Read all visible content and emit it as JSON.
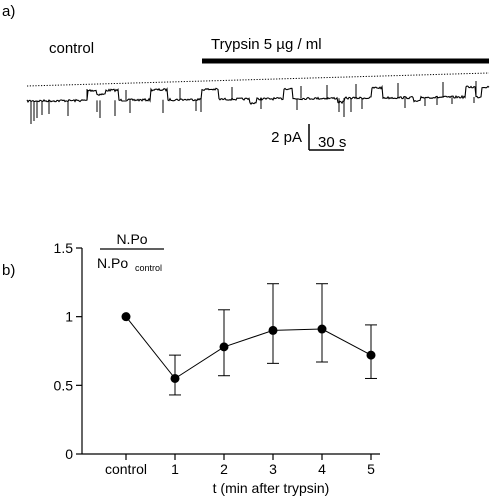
{
  "panel_a": {
    "label": "a)",
    "control_label": "control",
    "treatment_label": "Trypsin 5 µg / ml",
    "scale_current": "2 pA",
    "scale_time": "30 s"
  },
  "panel_b": {
    "label": "b)"
  },
  "chart_data": {
    "type": "line",
    "title": "",
    "ylabel_numerator": "N.Po",
    "ylabel_denominator_main": "N.Po",
    "ylabel_denominator_sub": "control",
    "xlabel": "t (min after trypsin)",
    "categories": [
      "control",
      "1",
      "2",
      "3",
      "4",
      "5"
    ],
    "values": [
      1.0,
      0.55,
      0.78,
      0.9,
      0.91,
      0.72
    ],
    "error_low": [
      1.0,
      0.43,
      0.57,
      0.66,
      0.67,
      0.55
    ],
    "error_high": [
      1.0,
      0.72,
      1.05,
      1.24,
      1.24,
      0.94
    ],
    "ylim": [
      0,
      1.5
    ],
    "yticks": [
      "0",
      "0.5",
      "1",
      "1.5"
    ],
    "grid": false,
    "legend": "none"
  }
}
